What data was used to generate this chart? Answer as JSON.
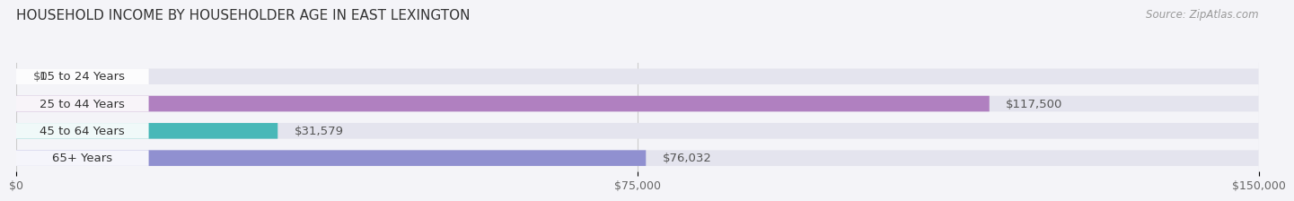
{
  "title": "HOUSEHOLD INCOME BY HOUSEHOLDER AGE IN EAST LEXINGTON",
  "source": "Source: ZipAtlas.com",
  "categories": [
    "15 to 24 Years",
    "25 to 44 Years",
    "45 to 64 Years",
    "65+ Years"
  ],
  "values": [
    0,
    117500,
    31579,
    76032
  ],
  "bar_colors": [
    "#a8c8e8",
    "#b080c0",
    "#48b8b8",
    "#9090d0"
  ],
  "bar_bg_color": "#e4e4ee",
  "value_labels": [
    "$0",
    "$117,500",
    "$31,579",
    "$76,032"
  ],
  "xlim": [
    0,
    150000
  ],
  "xtick_values": [
    0,
    75000,
    150000
  ],
  "xtick_labels": [
    "$0",
    "$75,000",
    "$150,000"
  ],
  "background_color": "#f4f4f8",
  "title_fontsize": 11,
  "source_fontsize": 8.5,
  "label_fontsize": 9.5,
  "tick_fontsize": 9
}
